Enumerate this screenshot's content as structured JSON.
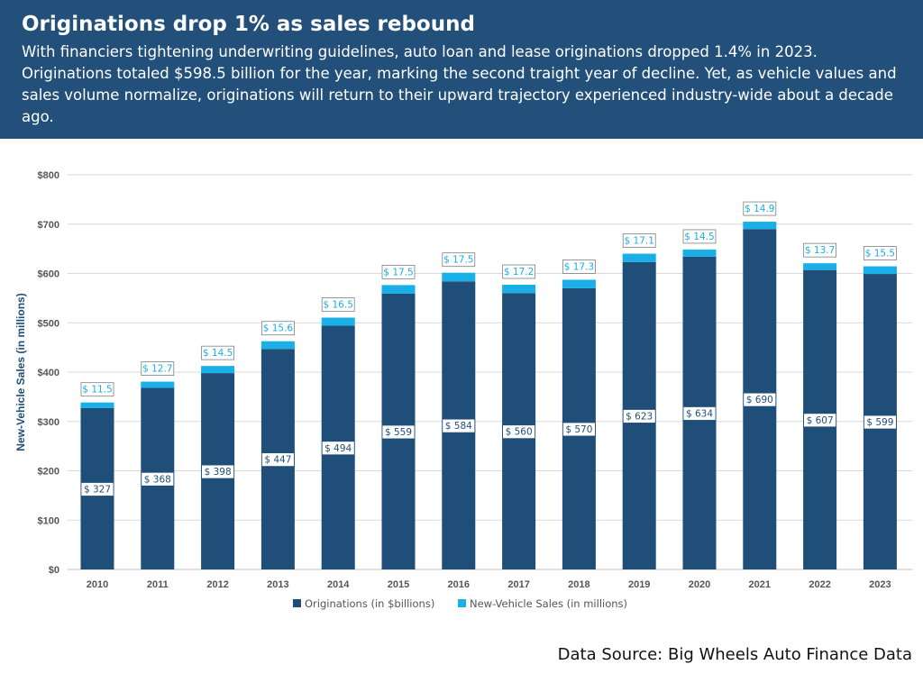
{
  "header": {
    "title": "Originations drop 1% as sales rebound",
    "subtitle": "With financiers tightening underwriting guidelines, auto loan and lease originations dropped 1.4% in 2023. Originations totaled $598.5 billion for the year, marking the second traight year of decline. Yet, as vehicle values and sales volume normalize, originations will return to their upward trajectory experienced industry-wide about a decade ago."
  },
  "source": "Data Source: Big Wheels Auto Finance Data",
  "colors": {
    "header_bg": "#22507a",
    "originations": "#1f4e79",
    "sales": "#1aafe6"
  },
  "chart_data": {
    "type": "bar",
    "stacked": true,
    "categories": [
      "2010",
      "2011",
      "2012",
      "2013",
      "2014",
      "2015",
      "2016",
      "2017",
      "2018",
      "2019",
      "2020",
      "2021",
      "2022",
      "2023"
    ],
    "series": [
      {
        "name": "Originations (in $billions)",
        "values": [
          327,
          368,
          398,
          447,
          494,
          559,
          584,
          560,
          570,
          623,
          634,
          690,
          607,
          599
        ],
        "labels": [
          "$ 327",
          "$ 368",
          "$ 398",
          "$ 447",
          "$ 494",
          "$ 559",
          "$ 584",
          "$ 560",
          "$ 570",
          "$ 623",
          "$ 634",
          "$ 690",
          "$ 607",
          "$ 599"
        ]
      },
      {
        "name": "New-Vehicle Sales (in millions)",
        "values": [
          11.5,
          12.7,
          14.5,
          15.6,
          16.5,
          17.5,
          17.5,
          17.2,
          17.3,
          17.1,
          14.5,
          14.9,
          13.7,
          15.5
        ],
        "labels": [
          "$ 11.5",
          "$ 12.7",
          "$ 14.5",
          "$ 15.6",
          "$ 16.5",
          "$ 17.5",
          "$ 17.5",
          "$ 17.2",
          "$ 17.3",
          "$ 17.1",
          "$ 14.5",
          "$ 14.9",
          "$ 13.7",
          "$ 15.5"
        ]
      }
    ],
    "ylabel": "New-Vehicle Sales (in millions)",
    "ylim": [
      0,
      800
    ],
    "yticks": [
      "$0",
      "$100",
      "$200",
      "$300",
      "$400",
      "$500",
      "$600",
      "$700",
      "$800"
    ],
    "grid": true,
    "legend": "bottom"
  }
}
